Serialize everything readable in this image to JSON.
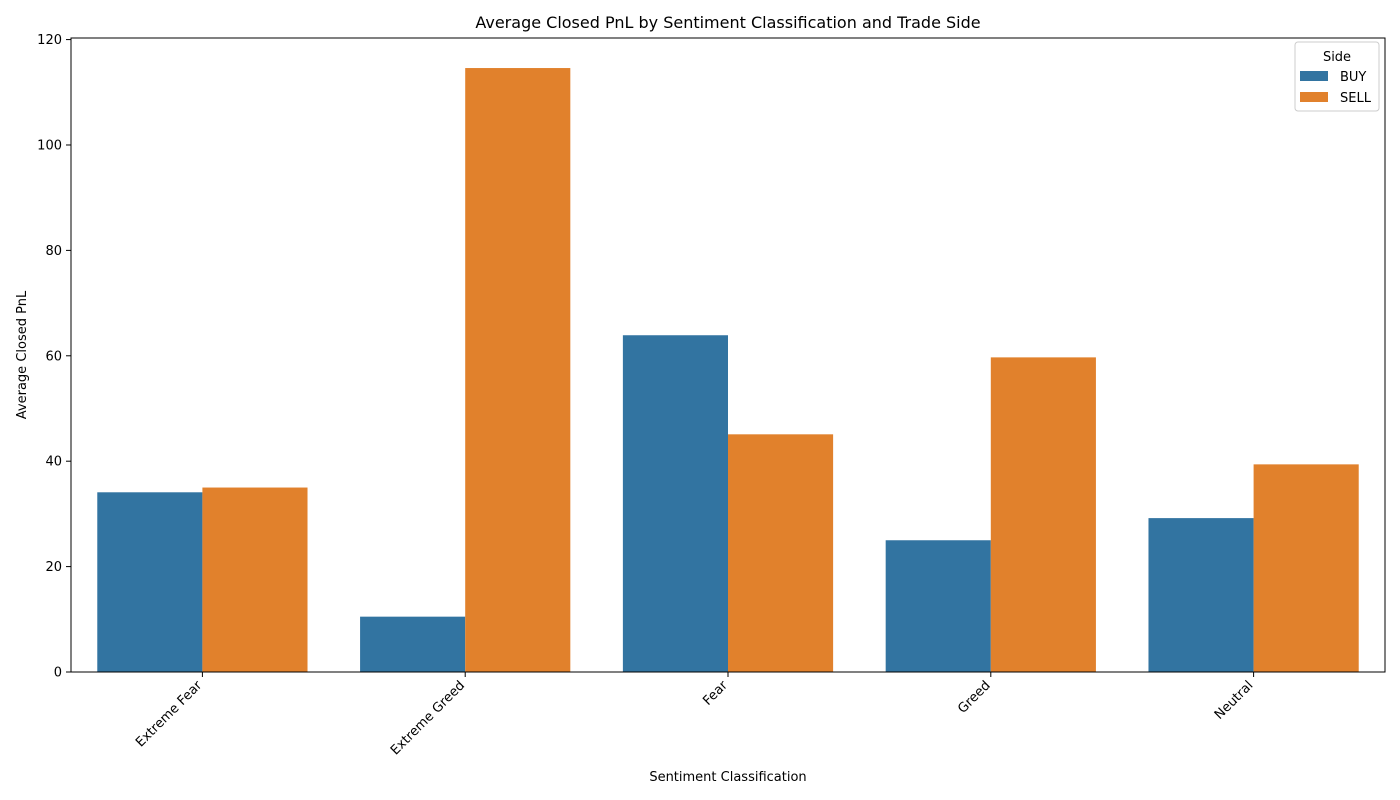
{
  "chart_data": {
    "type": "bar",
    "title": "Average Closed PnL by Sentiment Classification and Trade Side",
    "xlabel": "Sentiment Classification",
    "ylabel": "Average Closed PnL",
    "categories": [
      "Extreme Fear",
      "Extreme Greed",
      "Fear",
      "Greed",
      "Neutral"
    ],
    "series": [
      {
        "name": "BUY",
        "color": "#3274a1",
        "values": [
          34.1,
          10.5,
          63.9,
          25.0,
          29.2
        ]
      },
      {
        "name": "SELL",
        "color": "#e1812c",
        "values": [
          35.0,
          114.6,
          45.1,
          59.7,
          39.4
        ]
      }
    ],
    "ylim": [
      0,
      120.3
    ],
    "yticks": [
      0,
      20,
      40,
      60,
      80,
      100,
      120
    ],
    "legend": {
      "title": "Side",
      "position": "top-right"
    },
    "grid": false
  }
}
